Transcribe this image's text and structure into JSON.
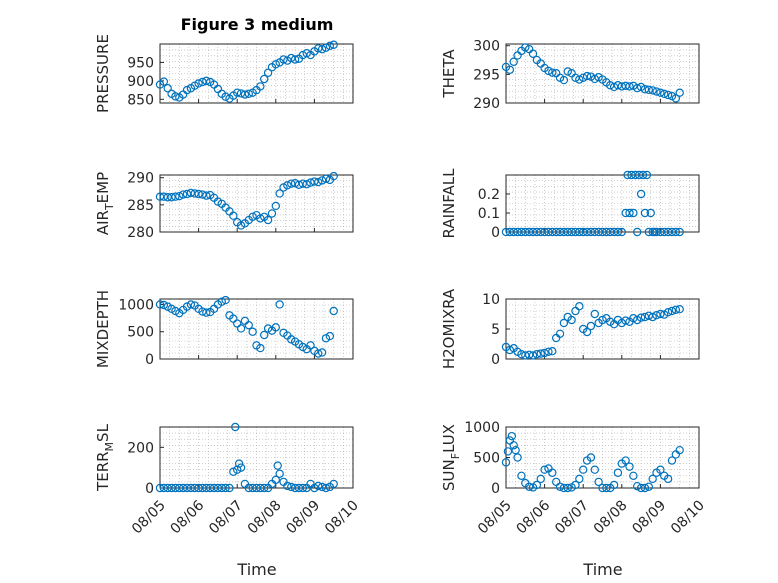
{
  "figure": {
    "title": "Figure 3 medium"
  },
  "colors": {
    "marker": "#0072bd",
    "axis": "#262626",
    "grid": "#b0b0b0"
  },
  "chart_data": [
    {
      "type": "scatter",
      "ylabel": "PRESSURE",
      "ylabel_sub": "",
      "ylabel_tail": "",
      "xlim": [
        0,
        5
      ],
      "ylim": [
        840,
        1000
      ],
      "yticks": [
        850,
        900,
        950
      ],
      "grid": true,
      "series": [
        {
          "x": [
            0,
            0.1,
            0.2,
            0.3,
            0.4,
            0.5,
            0.6,
            0.7,
            0.8,
            0.9,
            1.0,
            1.1,
            1.2,
            1.3,
            1.4,
            1.5,
            1.6,
            1.7,
            1.8,
            1.9,
            2.0,
            2.1,
            2.2,
            2.3,
            2.4,
            2.5,
            2.6,
            2.7,
            2.8,
            2.9,
            3.0,
            3.1,
            3.2,
            3.3,
            3.4,
            3.5,
            3.6,
            3.7,
            3.8,
            3.9,
            4.0,
            4.1,
            4.2,
            4.3,
            4.4,
            4.5
          ],
          "y": [
            890,
            898,
            880,
            865,
            858,
            855,
            863,
            875,
            880,
            887,
            893,
            897,
            900,
            897,
            890,
            878,
            865,
            857,
            852,
            860,
            868,
            866,
            863,
            865,
            868,
            875,
            885,
            905,
            922,
            937,
            945,
            950,
            958,
            955,
            962,
            958,
            960,
            970,
            975,
            970,
            980,
            988,
            986,
            990,
            995,
            998
          ]
        }
      ]
    },
    {
      "type": "scatter",
      "ylabel": "THETA",
      "ylabel_sub": "",
      "ylabel_tail": "",
      "xlim": [
        0,
        5
      ],
      "ylim": [
        290,
        300.3
      ],
      "yticks": [
        290,
        295,
        300
      ],
      "grid": true,
      "series": [
        {
          "x": [
            0,
            0.1,
            0.2,
            0.3,
            0.4,
            0.5,
            0.6,
            0.7,
            0.8,
            0.9,
            1.0,
            1.1,
            1.2,
            1.3,
            1.4,
            1.5,
            1.6,
            1.7,
            1.8,
            1.9,
            2.0,
            2.1,
            2.2,
            2.3,
            2.4,
            2.5,
            2.6,
            2.7,
            2.8,
            2.9,
            3.0,
            3.1,
            3.2,
            3.3,
            3.4,
            3.5,
            3.6,
            3.7,
            3.8,
            3.9,
            4.0,
            4.1,
            4.2,
            4.3,
            4.4,
            4.5
          ],
          "y": [
            296.3,
            295.8,
            297.2,
            298.3,
            299.1,
            299.7,
            299.4,
            298.6,
            297.5,
            296.9,
            296.1,
            295.6,
            295.3,
            295.2,
            294.4,
            294.0,
            295.5,
            295.2,
            294.4,
            294.1,
            294.4,
            294.7,
            294.6,
            294.2,
            294.5,
            294.1,
            293.6,
            293.1,
            292.8,
            293.1,
            292.9,
            293.0,
            292.9,
            293.0,
            292.6,
            292.8,
            292.4,
            292.3,
            292.2,
            292.0,
            291.8,
            291.6,
            291.4,
            291.2,
            290.8,
            291.8
          ]
        }
      ]
    },
    {
      "type": "scatter",
      "ylabel": "AIR",
      "ylabel_sub": "T",
      "ylabel_tail": "EMP",
      "xlim": [
        0,
        5
      ],
      "ylim": [
        280,
        290.5
      ],
      "yticks": [
        280,
        285,
        290
      ],
      "grid": true,
      "series": [
        {
          "x": [
            0,
            0.1,
            0.2,
            0.3,
            0.4,
            0.5,
            0.6,
            0.7,
            0.8,
            0.9,
            1.0,
            1.1,
            1.2,
            1.3,
            1.4,
            1.5,
            1.6,
            1.7,
            1.8,
            1.9,
            2.0,
            2.1,
            2.2,
            2.3,
            2.4,
            2.5,
            2.6,
            2.7,
            2.8,
            2.9,
            3.0,
            3.1,
            3.2,
            3.3,
            3.4,
            3.5,
            3.6,
            3.7,
            3.8,
            3.9,
            4.0,
            4.1,
            4.2,
            4.3,
            4.4,
            4.5
          ],
          "y": [
            286.5,
            286.5,
            286.4,
            286.4,
            286.5,
            286.6,
            286.9,
            287.0,
            287.2,
            287.1,
            287.0,
            286.9,
            286.7,
            286.8,
            286.3,
            285.6,
            285.2,
            284.5,
            283.8,
            283.0,
            281.8,
            281.2,
            281.6,
            282.2,
            282.8,
            283.1,
            282.5,
            282.8,
            282.2,
            283.4,
            284.8,
            287.1,
            288.2,
            288.6,
            288.9,
            289.0,
            288.7,
            288.9,
            288.8,
            289.1,
            289.3,
            289.2,
            289.5,
            289.8,
            289.6,
            290.3
          ]
        }
      ]
    },
    {
      "type": "scatter",
      "ylabel": "RAINFALL",
      "ylabel_sub": "",
      "ylabel_tail": "",
      "xlim": [
        0,
        5
      ],
      "ylim": [
        0,
        0.3
      ],
      "yticks": [
        0,
        0.1,
        0.2
      ],
      "grid": true,
      "series": [
        {
          "x": [
            0,
            0.1,
            0.2,
            0.3,
            0.4,
            0.5,
            0.6,
            0.7,
            0.8,
            0.9,
            1.0,
            1.1,
            1.2,
            1.3,
            1.4,
            1.5,
            1.6,
            1.7,
            1.8,
            1.9,
            2.0,
            2.1,
            2.2,
            2.3,
            2.4,
            2.5,
            2.6,
            2.7,
            2.8,
            2.9,
            3.0,
            3.1,
            3.15,
            3.2,
            3.25,
            3.3,
            3.35,
            3.4,
            3.45,
            3.5,
            3.55,
            3.6,
            3.65,
            3.7,
            3.75,
            3.8,
            3.85,
            3.9,
            4.0,
            4.1,
            4.2,
            4.3,
            4.4,
            4.5
          ],
          "y": [
            0,
            0,
            0,
            0,
            0,
            0,
            0,
            0,
            0,
            0,
            0,
            0,
            0,
            0,
            0,
            0,
            0,
            0,
            0,
            0,
            0,
            0,
            0,
            0,
            0,
            0,
            0,
            0,
            0,
            0,
            0,
            0.1,
            0.3,
            0.1,
            0.3,
            0.1,
            0.3,
            0,
            0.3,
            0.2,
            0.3,
            0.1,
            0.3,
            0,
            0.1,
            0,
            0,
            0,
            0,
            0,
            0,
            0,
            0,
            0
          ]
        }
      ]
    },
    {
      "type": "scatter",
      "ylabel": "MIXDEPTH",
      "ylabel_sub": "",
      "ylabel_tail": "",
      "xlim": [
        0,
        5
      ],
      "ylim": [
        0,
        1100
      ],
      "yticks": [
        0,
        500,
        1000
      ],
      "grid": true,
      "series": [
        {
          "x": [
            0,
            0.1,
            0.2,
            0.3,
            0.4,
            0.5,
            0.6,
            0.7,
            0.8,
            0.9,
            1.0,
            1.1,
            1.2,
            1.3,
            1.4,
            1.5,
            1.6,
            1.7,
            1.8,
            1.9,
            2.0,
            2.1,
            2.2,
            2.3,
            2.4,
            2.5,
            2.6,
            2.7,
            2.8,
            2.9,
            3.0,
            3.1,
            3.2,
            3.3,
            3.4,
            3.5,
            3.6,
            3.7,
            3.8,
            3.9,
            4.0,
            4.1,
            4.2,
            4.3,
            4.4,
            4.5
          ],
          "y": [
            1000,
            990,
            960,
            920,
            880,
            840,
            900,
            960,
            1000,
            980,
            920,
            870,
            850,
            860,
            920,
            1000,
            1050,
            1080,
            800,
            740,
            650,
            560,
            700,
            620,
            500,
            250,
            200,
            440,
            560,
            520,
            580,
            1000,
            480,
            430,
            360,
            320,
            270,
            220,
            180,
            250,
            150,
            100,
            120,
            380,
            420,
            880
          ]
        }
      ]
    },
    {
      "type": "scatter",
      "ylabel": "H2OMIXRA",
      "ylabel_sub": "",
      "ylabel_tail": "",
      "xlim": [
        0,
        5
      ],
      "ylim": [
        0,
        10
      ],
      "yticks": [
        0,
        5,
        10
      ],
      "grid": true,
      "series": [
        {
          "x": [
            0,
            0.1,
            0.2,
            0.3,
            0.4,
            0.5,
            0.6,
            0.7,
            0.8,
            0.9,
            1.0,
            1.1,
            1.2,
            1.3,
            1.4,
            1.5,
            1.6,
            1.7,
            1.8,
            1.9,
            2.0,
            2.1,
            2.2,
            2.3,
            2.4,
            2.5,
            2.6,
            2.7,
            2.8,
            2.9,
            3.0,
            3.1,
            3.2,
            3.3,
            3.4,
            3.5,
            3.6,
            3.7,
            3.8,
            3.9,
            4.0,
            4.1,
            4.2,
            4.3,
            4.4,
            4.5
          ],
          "y": [
            2.0,
            1.5,
            1.8,
            1.2,
            0.8,
            0.6,
            0.7,
            0.6,
            0.8,
            0.9,
            1.0,
            1.2,
            1.3,
            3.5,
            4.2,
            6.0,
            7.0,
            6.5,
            8.0,
            8.8,
            5.0,
            4.5,
            5.5,
            7.5,
            6.0,
            6.5,
            6.8,
            6.2,
            5.8,
            6.5,
            6.0,
            6.4,
            6.2,
            6.8,
            6.5,
            6.9,
            7.0,
            7.2,
            7.0,
            7.3,
            7.5,
            7.4,
            7.8,
            8.0,
            8.2,
            8.3
          ]
        }
      ]
    },
    {
      "type": "scatter",
      "ylabel": "TERR",
      "ylabel_sub": "M",
      "ylabel_tail": "SL",
      "xlim": [
        0,
        5
      ],
      "ylim": [
        0,
        300
      ],
      "yticks": [
        0,
        200
      ],
      "grid": true,
      "series": [
        {
          "x": [
            0,
            0.1,
            0.2,
            0.3,
            0.4,
            0.5,
            0.6,
            0.7,
            0.8,
            0.9,
            1.0,
            1.1,
            1.2,
            1.3,
            1.4,
            1.5,
            1.6,
            1.7,
            1.8,
            1.9,
            1.95,
            2.0,
            2.05,
            2.1,
            2.2,
            2.3,
            2.4,
            2.5,
            2.6,
            2.7,
            2.8,
            2.9,
            3.0,
            3.05,
            3.1,
            3.2,
            3.3,
            3.4,
            3.5,
            3.6,
            3.7,
            3.8,
            3.9,
            4.0,
            4.1,
            4.2,
            4.3,
            4.4,
            4.5
          ],
          "y": [
            0,
            0,
            0,
            0,
            0,
            0,
            0,
            0,
            0,
            0,
            0,
            0,
            0,
            0,
            0,
            0,
            0,
            0,
            0,
            80,
            300,
            90,
            120,
            100,
            20,
            0,
            0,
            0,
            0,
            0,
            0,
            20,
            40,
            110,
            70,
            30,
            10,
            5,
            0,
            0,
            0,
            0,
            20,
            0,
            10,
            5,
            0,
            5,
            20
          ]
        }
      ]
    },
    {
      "type": "scatter",
      "ylabel": "SUN",
      "ylabel_sub": "F",
      "ylabel_tail": "LUX",
      "xlim": [
        0,
        5
      ],
      "ylim": [
        0,
        1000
      ],
      "yticks": [
        0,
        500,
        1000
      ],
      "grid": true,
      "series": [
        {
          "x": [
            0,
            0.05,
            0.1,
            0.15,
            0.2,
            0.25,
            0.3,
            0.4,
            0.5,
            0.6,
            0.7,
            0.8,
            0.9,
            1.0,
            1.1,
            1.2,
            1.3,
            1.4,
            1.5,
            1.6,
            1.7,
            1.8,
            1.9,
            2.0,
            2.1,
            2.2,
            2.3,
            2.4,
            2.5,
            2.6,
            2.7,
            2.8,
            2.9,
            3.0,
            3.1,
            3.2,
            3.3,
            3.4,
            3.5,
            3.6,
            3.7,
            3.8,
            3.9,
            4.0,
            4.1,
            4.2,
            4.3,
            4.4,
            4.5
          ],
          "y": [
            420,
            600,
            780,
            850,
            700,
            620,
            500,
            200,
            80,
            20,
            10,
            50,
            150,
            300,
            320,
            250,
            100,
            20,
            0,
            0,
            10,
            50,
            150,
            300,
            450,
            500,
            300,
            100,
            0,
            0,
            0,
            50,
            250,
            400,
            450,
            350,
            200,
            30,
            0,
            0,
            20,
            150,
            250,
            300,
            200,
            150,
            450,
            550,
            620
          ]
        }
      ]
    }
  ],
  "xaxis": {
    "ticks": [
      "08/05",
      "08/06",
      "08/07",
      "08/08",
      "08/09",
      "08/10"
    ],
    "label": "Time"
  }
}
